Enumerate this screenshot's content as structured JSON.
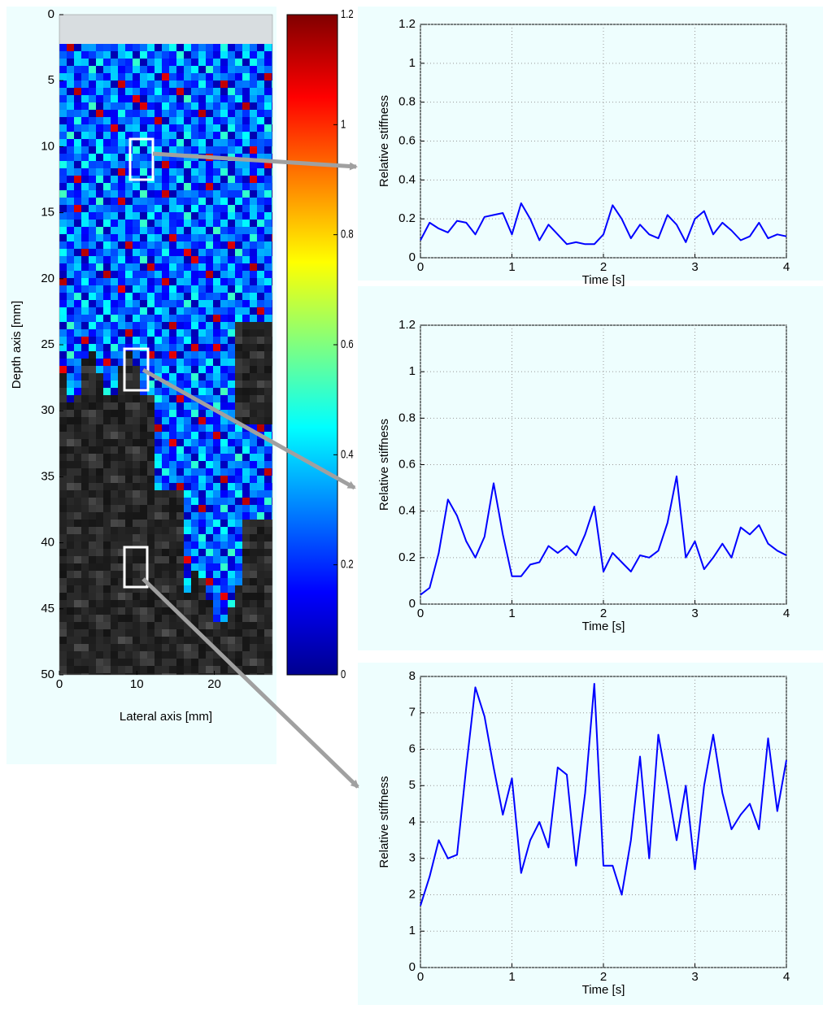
{
  "chart_data": [
    {
      "type": "image",
      "xlabel": "Lateral axis [mm]",
      "ylabel": "Depth axis [mm]",
      "xlim": [
        0,
        27.5
      ],
      "xticks": [
        0,
        10,
        20
      ],
      "ylim": [
        0,
        50
      ],
      "yticks": [
        0,
        5,
        10,
        15,
        20,
        25,
        30,
        35,
        40,
        45,
        50
      ],
      "y_reversed": true,
      "grid": false,
      "colormap": "jet",
      "clim": [
        0,
        1.2
      ],
      "cticks": [
        0,
        0.2,
        0.4,
        0.6,
        0.8,
        1,
        1.2
      ]
    },
    {
      "type": "line",
      "xlabel": "Time [s]",
      "ylabel": "Relative stiffness",
      "color": "#0000ff",
      "grid": true,
      "xlim": [
        0,
        4
      ],
      "xticks": [
        0,
        1,
        2,
        3,
        4
      ],
      "ylim": [
        0,
        1.2
      ],
      "yticks": [
        0,
        0.2,
        0.4,
        0.6,
        0.8,
        1,
        1.2
      ],
      "x": [
        0,
        0.1,
        0.2,
        0.3,
        0.4,
        0.5,
        0.6,
        0.7,
        0.8,
        0.9,
        1,
        1.1,
        1.2,
        1.3,
        1.4,
        1.5,
        1.6,
        1.7,
        1.8,
        1.9,
        2,
        2.1,
        2.2,
        2.3,
        2.4,
        2.5,
        2.6,
        2.7,
        2.8,
        2.9,
        3,
        3.1,
        3.2,
        3.3,
        3.4,
        3.5,
        3.6,
        3.7,
        3.8,
        3.9,
        4
      ],
      "values": [
        0.09,
        0.18,
        0.15,
        0.13,
        0.19,
        0.18,
        0.12,
        0.21,
        0.22,
        0.23,
        0.12,
        0.28,
        0.2,
        0.09,
        0.17,
        0.12,
        0.07,
        0.08,
        0.07,
        0.07,
        0.12,
        0.27,
        0.2,
        0.1,
        0.17,
        0.12,
        0.1,
        0.22,
        0.17,
        0.08,
        0.2,
        0.24,
        0.12,
        0.18,
        0.14,
        0.09,
        0.11,
        0.18,
        0.1,
        0.12,
        0.11
      ]
    },
    {
      "type": "line",
      "xlabel": "Time [s]",
      "ylabel": "Relative stiffness",
      "color": "#0000ff",
      "grid": true,
      "xlim": [
        0,
        4
      ],
      "xticks": [
        0,
        1,
        2,
        3,
        4
      ],
      "ylim": [
        0,
        1.2
      ],
      "yticks": [
        0,
        0.2,
        0.4,
        0.6,
        0.8,
        1,
        1.2
      ],
      "x": [
        0,
        0.1,
        0.2,
        0.3,
        0.4,
        0.5,
        0.6,
        0.7,
        0.8,
        0.9,
        1,
        1.1,
        1.2,
        1.3,
        1.4,
        1.5,
        1.6,
        1.7,
        1.8,
        1.9,
        2,
        2.1,
        2.2,
        2.3,
        2.4,
        2.5,
        2.6,
        2.7,
        2.8,
        2.9,
        3,
        3.1,
        3.2,
        3.3,
        3.4,
        3.5,
        3.6,
        3.7,
        3.8,
        3.9,
        4
      ],
      "values": [
        0.04,
        0.07,
        0.22,
        0.45,
        0.38,
        0.27,
        0.2,
        0.29,
        0.52,
        0.3,
        0.12,
        0.12,
        0.17,
        0.18,
        0.25,
        0.22,
        0.25,
        0.21,
        0.3,
        0.42,
        0.14,
        0.22,
        0.18,
        0.14,
        0.21,
        0.2,
        0.23,
        0.35,
        0.55,
        0.2,
        0.27,
        0.15,
        0.2,
        0.26,
        0.2,
        0.33,
        0.3,
        0.34,
        0.26,
        0.23,
        0.21
      ]
    },
    {
      "type": "line",
      "xlabel": "Time [s]",
      "ylabel": "Relative stiffness",
      "color": "#0000ff",
      "grid": true,
      "xlim": [
        0,
        4
      ],
      "xticks": [
        0,
        1,
        2,
        3,
        4
      ],
      "ylim": [
        0,
        8
      ],
      "yticks": [
        0,
        1,
        2,
        3,
        4,
        5,
        6,
        7,
        8
      ],
      "x": [
        0,
        0.1,
        0.2,
        0.3,
        0.4,
        0.5,
        0.6,
        0.7,
        0.8,
        0.9,
        1,
        1.1,
        1.2,
        1.3,
        1.4,
        1.5,
        1.6,
        1.7,
        1.8,
        1.9,
        2,
        2.1,
        2.2,
        2.3,
        2.4,
        2.5,
        2.6,
        2.7,
        2.8,
        2.9,
        3,
        3.1,
        3.2,
        3.3,
        3.4,
        3.5,
        3.6,
        3.7,
        3.8,
        3.9,
        4
      ],
      "values": [
        1.7,
        2.5,
        3.5,
        3.0,
        3.1,
        5.5,
        7.7,
        6.9,
        5.5,
        4.2,
        5.2,
        2.6,
        3.5,
        4.0,
        3.3,
        5.5,
        5.3,
        2.8,
        4.8,
        7.8,
        2.8,
        2.8,
        2.0,
        3.5,
        5.8,
        3.0,
        6.4,
        5.0,
        3.5,
        5.0,
        2.7,
        5.0,
        6.4,
        4.8,
        3.8,
        4.2,
        4.5,
        3.8,
        6.3,
        4.3,
        5.7
      ]
    }
  ]
}
